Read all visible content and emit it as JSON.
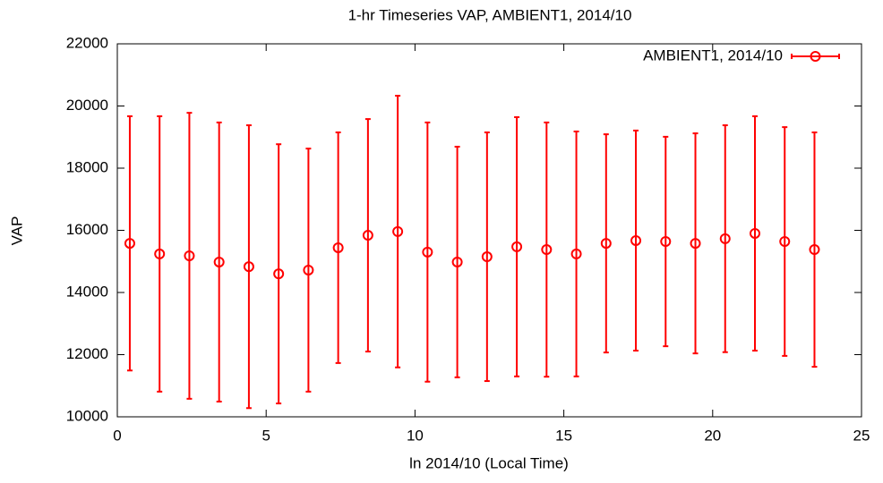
{
  "chart_data": {
    "type": "errorbar",
    "title": "1-hr Timeseries VAP, AMBIENT1, 2014/10",
    "x_label": "ln 2014/10 (Local Time)",
    "y_label": "VAP",
    "x": [
      0.42,
      1.42,
      2.42,
      3.42,
      4.42,
      5.42,
      6.42,
      7.42,
      8.42,
      9.42,
      10.42,
      11.42,
      12.42,
      13.42,
      14.42,
      15.42,
      16.42,
      17.42,
      18.42,
      19.42,
      20.42,
      21.42,
      22.42,
      23.42
    ],
    "series": [
      {
        "name": "AMBIENT1, 2014/10",
        "color": "#ff0000",
        "values": [
          15580,
          15240,
          15180,
          14980,
          14830,
          14600,
          14720,
          15440,
          15840,
          15960,
          15300,
          14980,
          15150,
          15470,
          15380,
          15240,
          15580,
          15670,
          15640,
          15580,
          15730,
          15900,
          15640,
          15380
        ],
        "errors": [
          4090,
          4430,
          4600,
          4490,
          4550,
          4170,
          3910,
          3710,
          3740,
          4370,
          4170,
          3710,
          4000,
          4170,
          4090,
          3940,
          3510,
          3540,
          3370,
          3540,
          3650,
          3770,
          3680,
          3770
        ]
      }
    ],
    "xlim": [
      0,
      25
    ],
    "xticks": [
      0,
      5,
      10,
      15,
      20,
      25
    ],
    "ylim": [
      10000,
      22000
    ],
    "yticks": [
      10000,
      12000,
      14000,
      16000,
      18000,
      20000,
      22000
    ],
    "grid": false,
    "legend": "top-right"
  }
}
